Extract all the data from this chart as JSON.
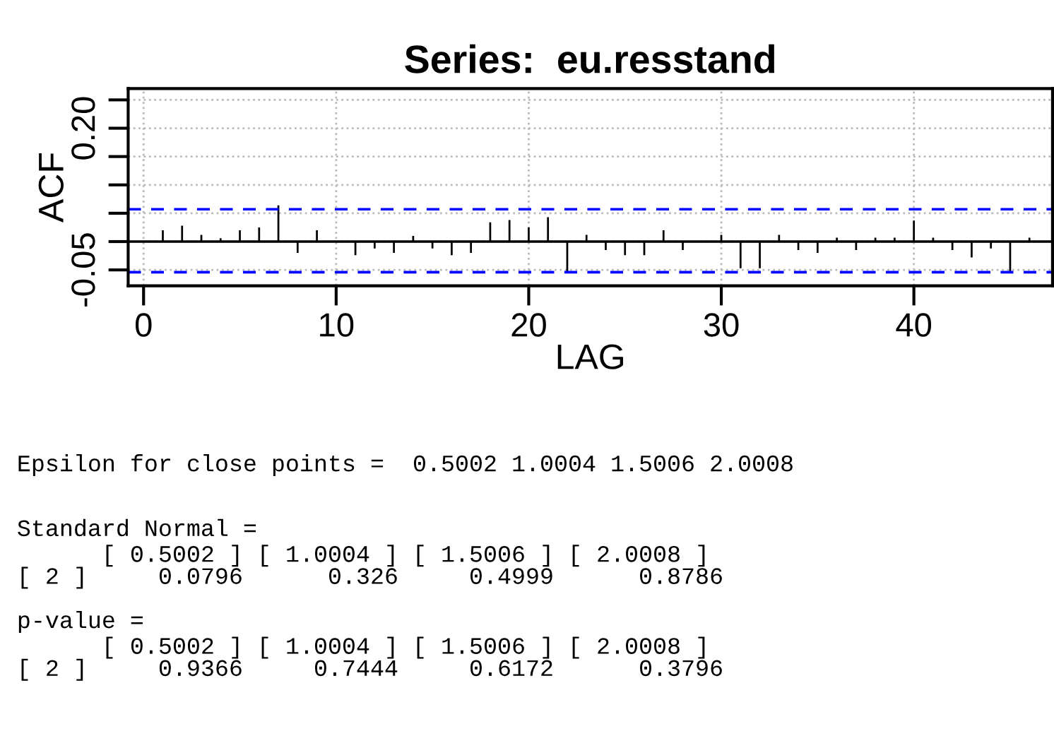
{
  "chart_data": {
    "type": "bar",
    "title": "Series:  eu.resstand",
    "xlabel": "LAG",
    "ylabel": "ACF",
    "x": [
      1,
      2,
      3,
      4,
      5,
      6,
      7,
      8,
      9,
      10,
      11,
      12,
      13,
      14,
      15,
      16,
      17,
      18,
      19,
      20,
      21,
      22,
      23,
      24,
      25,
      26,
      27,
      28,
      29,
      30,
      31,
      32,
      33,
      34,
      35,
      36,
      37,
      38,
      39,
      40,
      41,
      42,
      43,
      44,
      45,
      46
    ],
    "values": [
      0.02,
      0.028,
      0.012,
      0.006,
      0.02,
      0.025,
      0.064,
      -0.02,
      0.02,
      null,
      -0.024,
      -0.012,
      -0.02,
      0.01,
      -0.012,
      -0.024,
      -0.02,
      0.034,
      0.038,
      0.025,
      0.043,
      -0.055,
      0.012,
      -0.015,
      -0.024,
      -0.024,
      0.02,
      -0.015,
      null,
      0.012,
      -0.047,
      -0.047,
      0.012,
      -0.015,
      -0.02,
      0.007,
      -0.015,
      0.007,
      0.007,
      0.037,
      0.007,
      -0.015,
      -0.028,
      -0.012,
      -0.055,
      0.007
    ],
    "color": "#000000",
    "xlim": [
      -0.8,
      47.2
    ],
    "xticks": [
      0,
      10,
      20,
      30,
      40
    ],
    "ylim": [
      -0.078,
      0.27
    ],
    "yticks": [
      {
        "value": -0.05,
        "label": "-0.05"
      },
      {
        "value": 0,
        "label": null
      },
      {
        "value": 0.05,
        "label": null
      },
      {
        "value": 0.1,
        "label": null
      },
      {
        "value": 0.15,
        "label": null
      },
      {
        "value": 0.2,
        "label": "0.20"
      },
      {
        "value": 0.25,
        "label": null
      }
    ],
    "grid": true,
    "ref_lines": [
      {
        "axis": "y",
        "value": 0.057,
        "color": "#0000ff",
        "line_style": "dashed"
      },
      {
        "axis": "y",
        "value": -0.054,
        "color": "#0000ff",
        "line_style": "dashed"
      },
      {
        "axis": "y",
        "value": 0,
        "color": "#000000",
        "line_style": "solid"
      }
    ],
    "annotations": [
      "Epsilon for close points =  0.5002 1.0004 1.5006 2.0008",
      "Standard Normal =",
      "      [ 0.5002 ] [ 1.0004 ] [ 1.5006 ] [ 2.0008 ]",
      "[ 2 ]     0.0796      0.326     0.4999      0.8786",
      "p-value =",
      "      [ 0.5002 ] [ 1.0004 ] [ 1.5006 ] [ 2.0008 ]",
      "[ 2 ]     0.9366     0.7444     0.6172      0.3796"
    ]
  }
}
